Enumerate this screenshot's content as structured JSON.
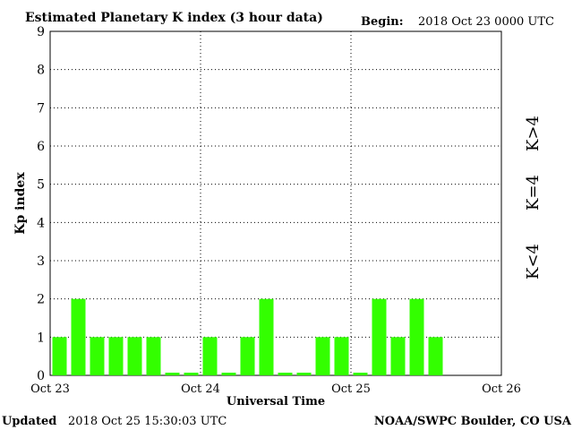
{
  "header": {
    "title": "Estimated Planetary K index (3 hour data)",
    "begin_label": "Begin:",
    "begin_value": "2018 Oct 23 0000 UTC"
  },
  "footer": {
    "updated_label": "Updated",
    "updated_value": "2018 Oct 25 15:30:03 UTC",
    "credit": "NOAA/SWPC Boulder, CO USA"
  },
  "legend": [
    {
      "label": "K>4",
      "color": "#ff2200"
    },
    {
      "label": "K=4",
      "color": "#ffcc00"
    },
    {
      "label": "K<4",
      "color": "#33ff00"
    }
  ],
  "chart_data": {
    "type": "bar",
    "title": "Estimated Planetary K index (3 hour data)",
    "xlabel": "Universal Time",
    "ylabel": "Kp index",
    "ylim": [
      0,
      9
    ],
    "yticks": [
      "0",
      "1",
      "2",
      "3",
      "4",
      "5",
      "6",
      "7",
      "8",
      "9"
    ],
    "xticks": [
      "Oct 23",
      "Oct 24",
      "Oct 25",
      "Oct 26"
    ],
    "grid": true,
    "bar_color": "#33ff00",
    "slots_total": 24,
    "values": [
      1,
      2,
      1,
      1,
      1,
      1,
      0,
      0,
      1,
      0,
      1,
      2,
      0,
      0,
      1,
      1,
      0,
      2,
      1,
      2,
      1
    ]
  }
}
